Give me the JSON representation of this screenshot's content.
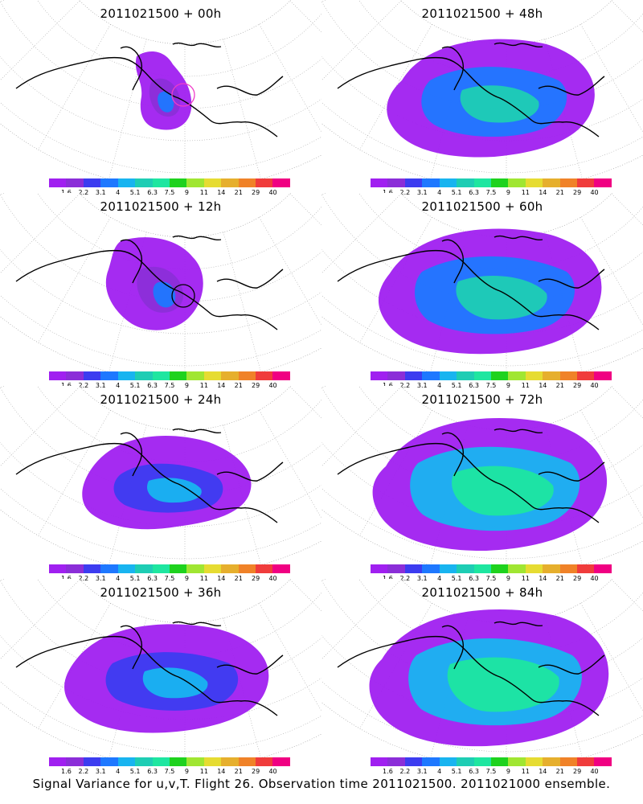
{
  "panels": [
    {
      "title": "2011021500 + 00h",
      "intensity": 0,
      "circle": "magenta"
    },
    {
      "title": "2011021500 + 12h",
      "intensity": 1,
      "circle": "black"
    },
    {
      "title": "2011021500 + 24h",
      "intensity": 2,
      "circle": ""
    },
    {
      "title": "2011021500 + 36h",
      "intensity": 3,
      "circle": ""
    },
    {
      "title": "2011021500 + 48h",
      "intensity": 4,
      "circle": ""
    },
    {
      "title": "2011021500 + 60h",
      "intensity": 5,
      "circle": ""
    },
    {
      "title": "2011021500 + 72h",
      "intensity": 6,
      "circle": ""
    },
    {
      "title": "2011021500 + 84h",
      "intensity": 7,
      "circle": ""
    }
  ],
  "legend": {
    "labels": [
      "1.6",
      "2.2",
      "3.1",
      "4",
      "5.1",
      "6.3",
      "7.5",
      "9",
      "11",
      "14",
      "21",
      "29",
      "40"
    ],
    "colors": [
      "#a020f0",
      "#8b2ed8",
      "#3c3cf0",
      "#1e78ff",
      "#18b4f0",
      "#1ecdb4",
      "#1ee6a0",
      "#1ed21e",
      "#a0e632",
      "#e6dc32",
      "#e6af2d",
      "#f08228",
      "#f03c3c",
      "#f00082"
    ]
  },
  "caption": "Signal Variance for u,v,T. Flight 26. Observation time 2011021500. 2011021000 ensemble."
}
